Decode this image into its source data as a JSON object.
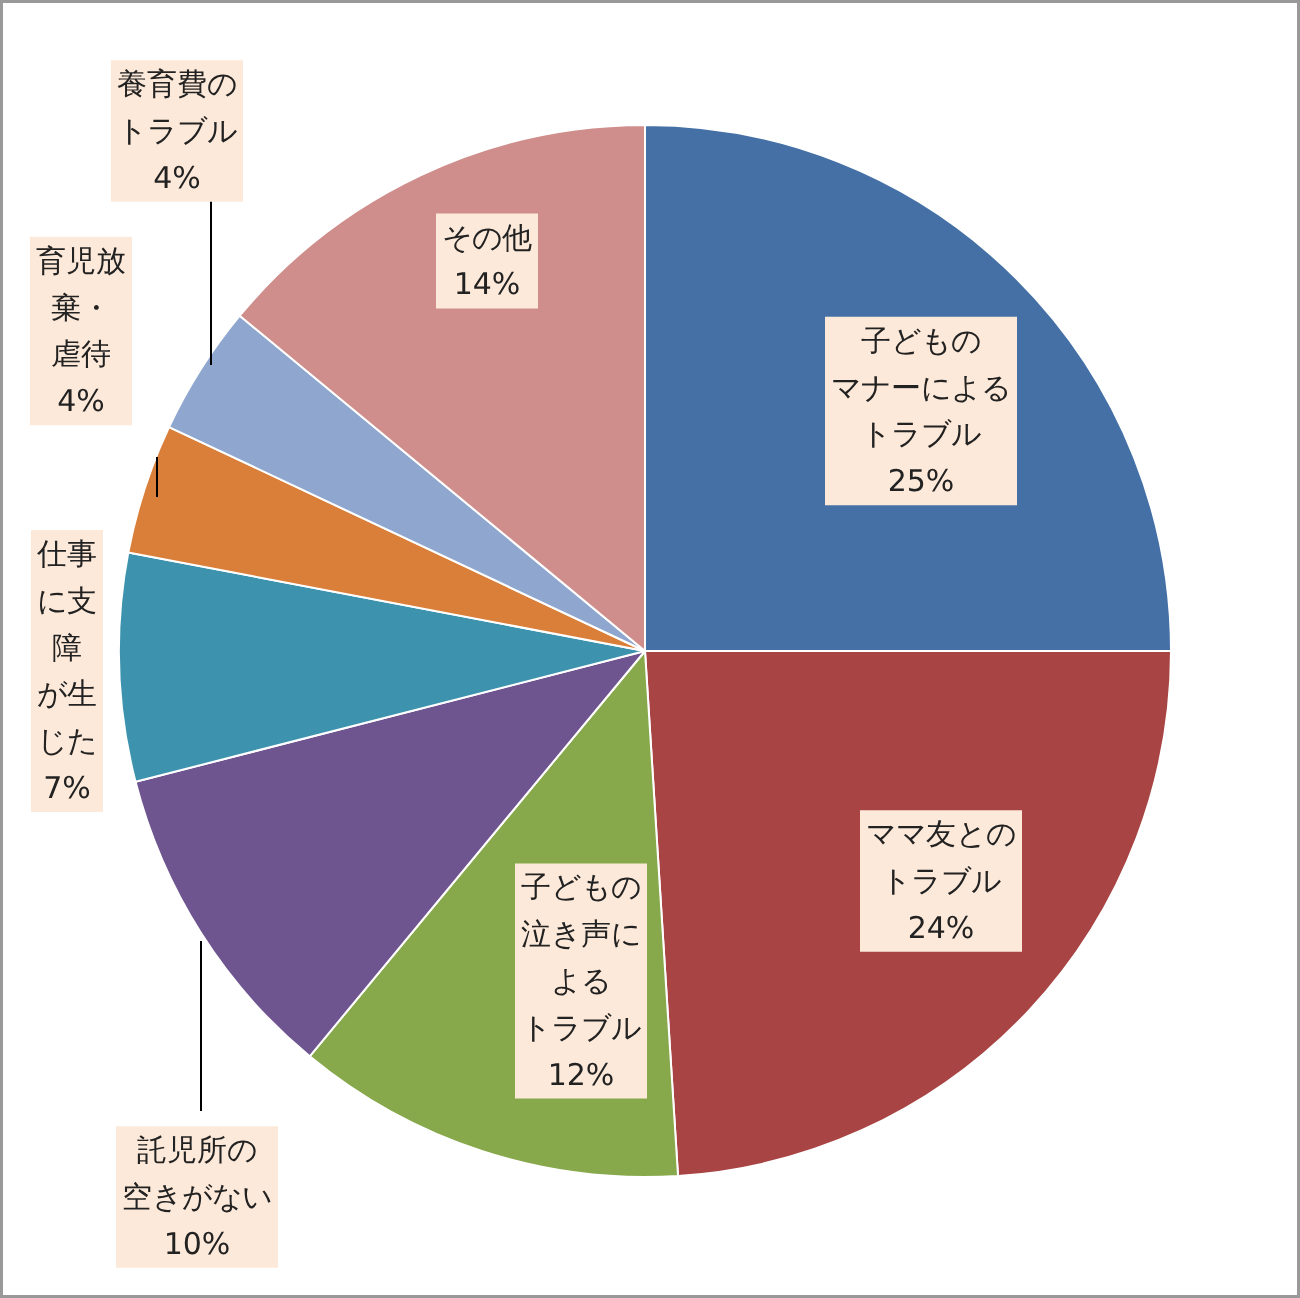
{
  "chart_data": {
    "type": "pie",
    "categories": [
      "子どものマナーによるトラブル",
      "ママ友とのトラブル",
      "子どもの泣き声によるトラブル",
      "託児所の空きがない",
      "仕事に支障が生じた",
      "育児放棄・虐待",
      "養育費のトラブル",
      "その他"
    ],
    "values": [
      25,
      24,
      12,
      10,
      7,
      4,
      4,
      14
    ],
    "value_labels": [
      "25%",
      "24%",
      "12%",
      "10%",
      "7%",
      "4%",
      "4%",
      "14%"
    ],
    "colors": [
      "#4470a6",
      "#a84443",
      "#87a84b",
      "#6f5590",
      "#3d93ad",
      "#d97f3a",
      "#8fa7cf",
      "#cf8e8c"
    ]
  }
}
